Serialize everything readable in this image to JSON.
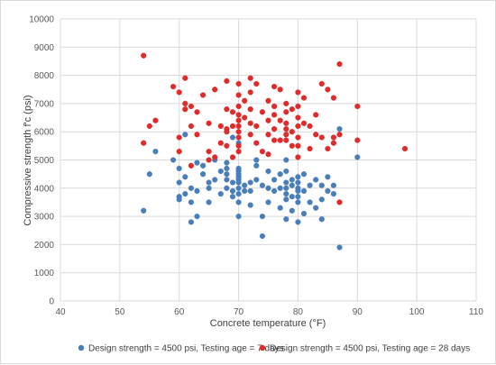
{
  "chart_data": {
    "type": "scatter",
    "title": "",
    "xlabel": "Concrete temperature (°F)",
    "ylabel": "Compressive strength f'c (psi)",
    "xlim": [
      40,
      110
    ],
    "ylim": [
      0,
      10000
    ],
    "xticks": [
      "40",
      "50",
      "60",
      "70",
      "80",
      "90",
      "100",
      "110"
    ],
    "yticks": [
      "0",
      "1000",
      "2000",
      "3000",
      "4000",
      "5000",
      "6000",
      "7000",
      "8000",
      "9000",
      "10000"
    ],
    "grid": true,
    "legend_position": "bottom",
    "series": [
      {
        "name": "Design strength = 4500 psi, Testing age = 7 days",
        "color": "#4a7ebb",
        "points": [
          [
            54,
            3200
          ],
          [
            55,
            4500
          ],
          [
            56,
            5300
          ],
          [
            59,
            5000
          ],
          [
            60,
            3600
          ],
          [
            60,
            3700
          ],
          [
            60,
            4200
          ],
          [
            60,
            4700
          ],
          [
            61,
            3800
          ],
          [
            61,
            4400
          ],
          [
            61,
            5900
          ],
          [
            62,
            2800
          ],
          [
            62,
            3500
          ],
          [
            62,
            4000
          ],
          [
            63,
            3000
          ],
          [
            63,
            3900
          ],
          [
            63,
            4900
          ],
          [
            64,
            4800
          ],
          [
            64,
            4500
          ],
          [
            65,
            4000
          ],
          [
            65,
            3500
          ],
          [
            65,
            4200
          ],
          [
            66,
            4300
          ],
          [
            66,
            5000
          ],
          [
            67,
            3800
          ],
          [
            67,
            4600
          ],
          [
            68,
            4000
          ],
          [
            68,
            4300
          ],
          [
            68,
            4500
          ],
          [
            68,
            4700
          ],
          [
            68,
            4900
          ],
          [
            69,
            3700
          ],
          [
            69,
            3900
          ],
          [
            69,
            4200
          ],
          [
            69,
            5800
          ],
          [
            70,
            3000
          ],
          [
            70,
            3500
          ],
          [
            70,
            3800
          ],
          [
            70,
            4000
          ],
          [
            70,
            4200
          ],
          [
            70,
            4300
          ],
          [
            70,
            4400
          ],
          [
            70,
            4500
          ],
          [
            70,
            4600
          ],
          [
            70,
            4700
          ],
          [
            70,
            5600
          ],
          [
            71,
            3900
          ],
          [
            71,
            4100
          ],
          [
            72,
            3400
          ],
          [
            72,
            3900
          ],
          [
            72,
            4200
          ],
          [
            73,
            4300
          ],
          [
            73,
            4800
          ],
          [
            73,
            5000
          ],
          [
            74,
            2300
          ],
          [
            74,
            3000
          ],
          [
            74,
            4100
          ],
          [
            75,
            3500
          ],
          [
            75,
            4000
          ],
          [
            75,
            4600
          ],
          [
            76,
            3900
          ],
          [
            76,
            4300
          ],
          [
            77,
            3300
          ],
          [
            77,
            4000
          ],
          [
            77,
            4500
          ],
          [
            78,
            2900
          ],
          [
            78,
            3600
          ],
          [
            78,
            3800
          ],
          [
            78,
            4000
          ],
          [
            78,
            4200
          ],
          [
            78,
            4600
          ],
          [
            78,
            5000
          ],
          [
            79,
            3200
          ],
          [
            79,
            3700
          ],
          [
            79,
            4100
          ],
          [
            79,
            4300
          ],
          [
            80,
            2800
          ],
          [
            80,
            3500
          ],
          [
            80,
            3700
          ],
          [
            80,
            3900
          ],
          [
            80,
            4000
          ],
          [
            80,
            4200
          ],
          [
            80,
            4400
          ],
          [
            81,
            3100
          ],
          [
            81,
            3900
          ],
          [
            81,
            4500
          ],
          [
            82,
            3500
          ],
          [
            82,
            4100
          ],
          [
            83,
            3300
          ],
          [
            83,
            4300
          ],
          [
            84,
            2900
          ],
          [
            84,
            3600
          ],
          [
            84,
            4100
          ],
          [
            85,
            4400
          ],
          [
            85,
            3900
          ],
          [
            86,
            3800
          ],
          [
            86,
            4100
          ],
          [
            87,
            1900
          ],
          [
            87,
            6100
          ],
          [
            90,
            5100
          ]
        ]
      },
      {
        "name": "Design strength = 4500 psi, Testing age = 28 days",
        "color": "#e02b2b",
        "points": [
          [
            54,
            8700
          ],
          [
            54,
            5600
          ],
          [
            55,
            6200
          ],
          [
            56,
            6400
          ],
          [
            59,
            7600
          ],
          [
            60,
            7400
          ],
          [
            60,
            5800
          ],
          [
            60,
            5300
          ],
          [
            61,
            7900
          ],
          [
            61,
            6800
          ],
          [
            61,
            7000
          ],
          [
            62,
            6200
          ],
          [
            62,
            4800
          ],
          [
            62,
            6900
          ],
          [
            63,
            5900
          ],
          [
            63,
            6700
          ],
          [
            64,
            7300
          ],
          [
            65,
            5300
          ],
          [
            65,
            5000
          ],
          [
            65,
            6300
          ],
          [
            66,
            7500
          ],
          [
            66,
            5100
          ],
          [
            67,
            6200
          ],
          [
            67,
            5600
          ],
          [
            68,
            7800
          ],
          [
            68,
            6800
          ],
          [
            68,
            6100
          ],
          [
            68,
            6000
          ],
          [
            68,
            5500
          ],
          [
            69,
            6700
          ],
          [
            69,
            6200
          ],
          [
            69,
            5100
          ],
          [
            70,
            7700
          ],
          [
            70,
            7300
          ],
          [
            70,
            6900
          ],
          [
            70,
            6600
          ],
          [
            70,
            6400
          ],
          [
            70,
            6200
          ],
          [
            70,
            6000
          ],
          [
            70,
            5800
          ],
          [
            70,
            5500
          ],
          [
            70,
            5300
          ],
          [
            71,
            7100
          ],
          [
            71,
            6500
          ],
          [
            72,
            7900
          ],
          [
            72,
            7400
          ],
          [
            72,
            6800
          ],
          [
            72,
            6300
          ],
          [
            72,
            5900
          ],
          [
            73,
            7700
          ],
          [
            73,
            6200
          ],
          [
            73,
            5600
          ],
          [
            74,
            6700
          ],
          [
            74,
            5300
          ],
          [
            75,
            7100
          ],
          [
            75,
            6400
          ],
          [
            75,
            5900
          ],
          [
            75,
            5200
          ],
          [
            76,
            7600
          ],
          [
            76,
            6900
          ],
          [
            76,
            6600
          ],
          [
            76,
            6100
          ],
          [
            76,
            5700
          ],
          [
            77,
            7500
          ],
          [
            77,
            6400
          ],
          [
            77,
            5700
          ],
          [
            78,
            7000
          ],
          [
            78,
            6700
          ],
          [
            78,
            6300
          ],
          [
            78,
            6100
          ],
          [
            78,
            5900
          ],
          [
            78,
            5700
          ],
          [
            79,
            6800
          ],
          [
            79,
            6000
          ],
          [
            79,
            5500
          ],
          [
            80,
            7400
          ],
          [
            80,
            6900
          ],
          [
            80,
            6500
          ],
          [
            80,
            6200
          ],
          [
            80,
            5800
          ],
          [
            80,
            5500
          ],
          [
            80,
            5100
          ],
          [
            81,
            7200
          ],
          [
            81,
            6300
          ],
          [
            82,
            6200
          ],
          [
            82,
            5400
          ],
          [
            83,
            6600
          ],
          [
            83,
            5900
          ],
          [
            84,
            7700
          ],
          [
            84,
            5800
          ],
          [
            85,
            7500
          ],
          [
            85,
            5400
          ],
          [
            86,
            7200
          ],
          [
            86,
            5800
          ],
          [
            86,
            5600
          ],
          [
            87,
            8400
          ],
          [
            87,
            3500
          ],
          [
            87,
            5900
          ],
          [
            90,
            6900
          ],
          [
            90,
            5700
          ],
          [
            98,
            5400
          ]
        ]
      }
    ]
  }
}
